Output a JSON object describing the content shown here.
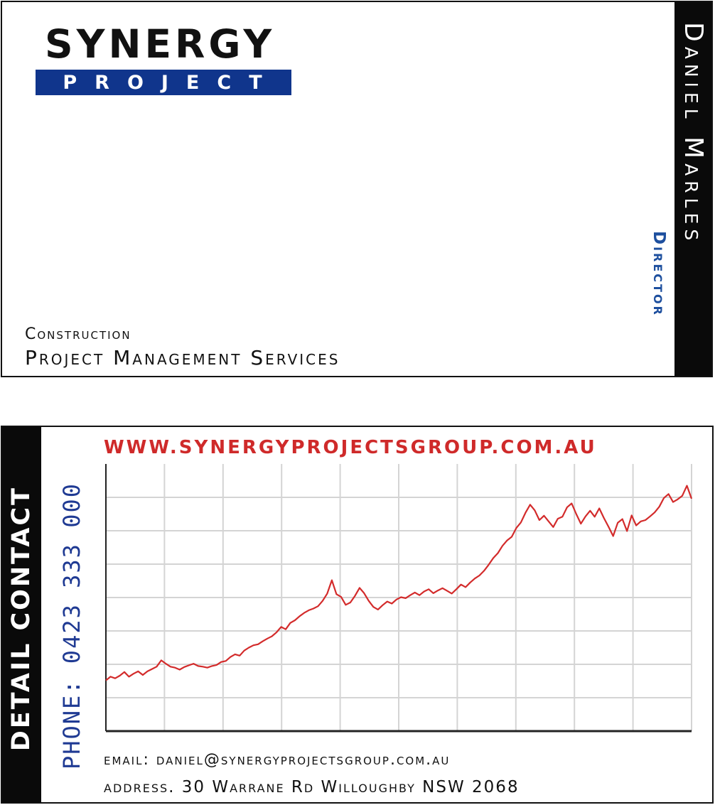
{
  "front": {
    "logo_main": "SYNERGY",
    "logo_sub": "PROJECT",
    "name": "Daniel Marles",
    "title": "Director",
    "tagline_1": "Construction",
    "tagline_2": "Project Management Services",
    "colors": {
      "brand_blue": "#10358c",
      "title_blue": "#1d4f9e",
      "band": "#0a0a0a"
    }
  },
  "back": {
    "band_label": "DETAIL CONTACT",
    "phone": "PHONE: 0423 333 000",
    "website": "WWW.SYNERGYPROJECTSGROUP.COM.AU",
    "email": "email: daniel@synergyprojectsgroup.com.au",
    "address": "address. 30 Warrane Rd Willoughby NSW 2068",
    "colors": {
      "web_red": "#cf2a2a",
      "phone_blue": "#1f3a93",
      "line_red": "#d32b2b",
      "grid": "#d4d4d4"
    }
  },
  "chart_data": {
    "type": "line",
    "grid": true,
    "xlim": [
      0,
      200
    ],
    "ylim": [
      0,
      8
    ],
    "series": [
      {
        "values": [
          1.52,
          1.63,
          1.58,
          1.66,
          1.77,
          1.63,
          1.72,
          1.79,
          1.68,
          1.79,
          1.86,
          1.93,
          2.12,
          2.02,
          1.93,
          1.9,
          1.84,
          1.92,
          1.97,
          2.02,
          1.95,
          1.93,
          1.9,
          1.95,
          1.98,
          2.07,
          2.1,
          2.22,
          2.3,
          2.26,
          2.41,
          2.5,
          2.57,
          2.6,
          2.69,
          2.77,
          2.84,
          2.96,
          3.12,
          3.05,
          3.24,
          3.32,
          3.44,
          3.54,
          3.62,
          3.67,
          3.74,
          3.9,
          4.12,
          4.52,
          4.1,
          4.02,
          3.78,
          3.85,
          4.05,
          4.29,
          4.13,
          3.9,
          3.72,
          3.64,
          3.77,
          3.88,
          3.82,
          3.94,
          4.01,
          3.98,
          4.07,
          4.15,
          4.07,
          4.18,
          4.25,
          4.13,
          4.21,
          4.28,
          4.2,
          4.12,
          4.25,
          4.39,
          4.31,
          4.45,
          4.57,
          4.66,
          4.8,
          4.98,
          5.18,
          5.33,
          5.55,
          5.71,
          5.82,
          6.08,
          6.25,
          6.54,
          6.78,
          6.61,
          6.32,
          6.45,
          6.28,
          6.11,
          6.36,
          6.42,
          6.7,
          6.82,
          6.5,
          6.21,
          6.43,
          6.6,
          6.42,
          6.67,
          6.38,
          6.12,
          5.84,
          6.24,
          6.35,
          5.99,
          6.46,
          6.16,
          6.28,
          6.32,
          6.43,
          6.55,
          6.72,
          6.98,
          7.1,
          6.86,
          6.94,
          7.05,
          7.35,
          6.96
        ]
      }
    ]
  }
}
